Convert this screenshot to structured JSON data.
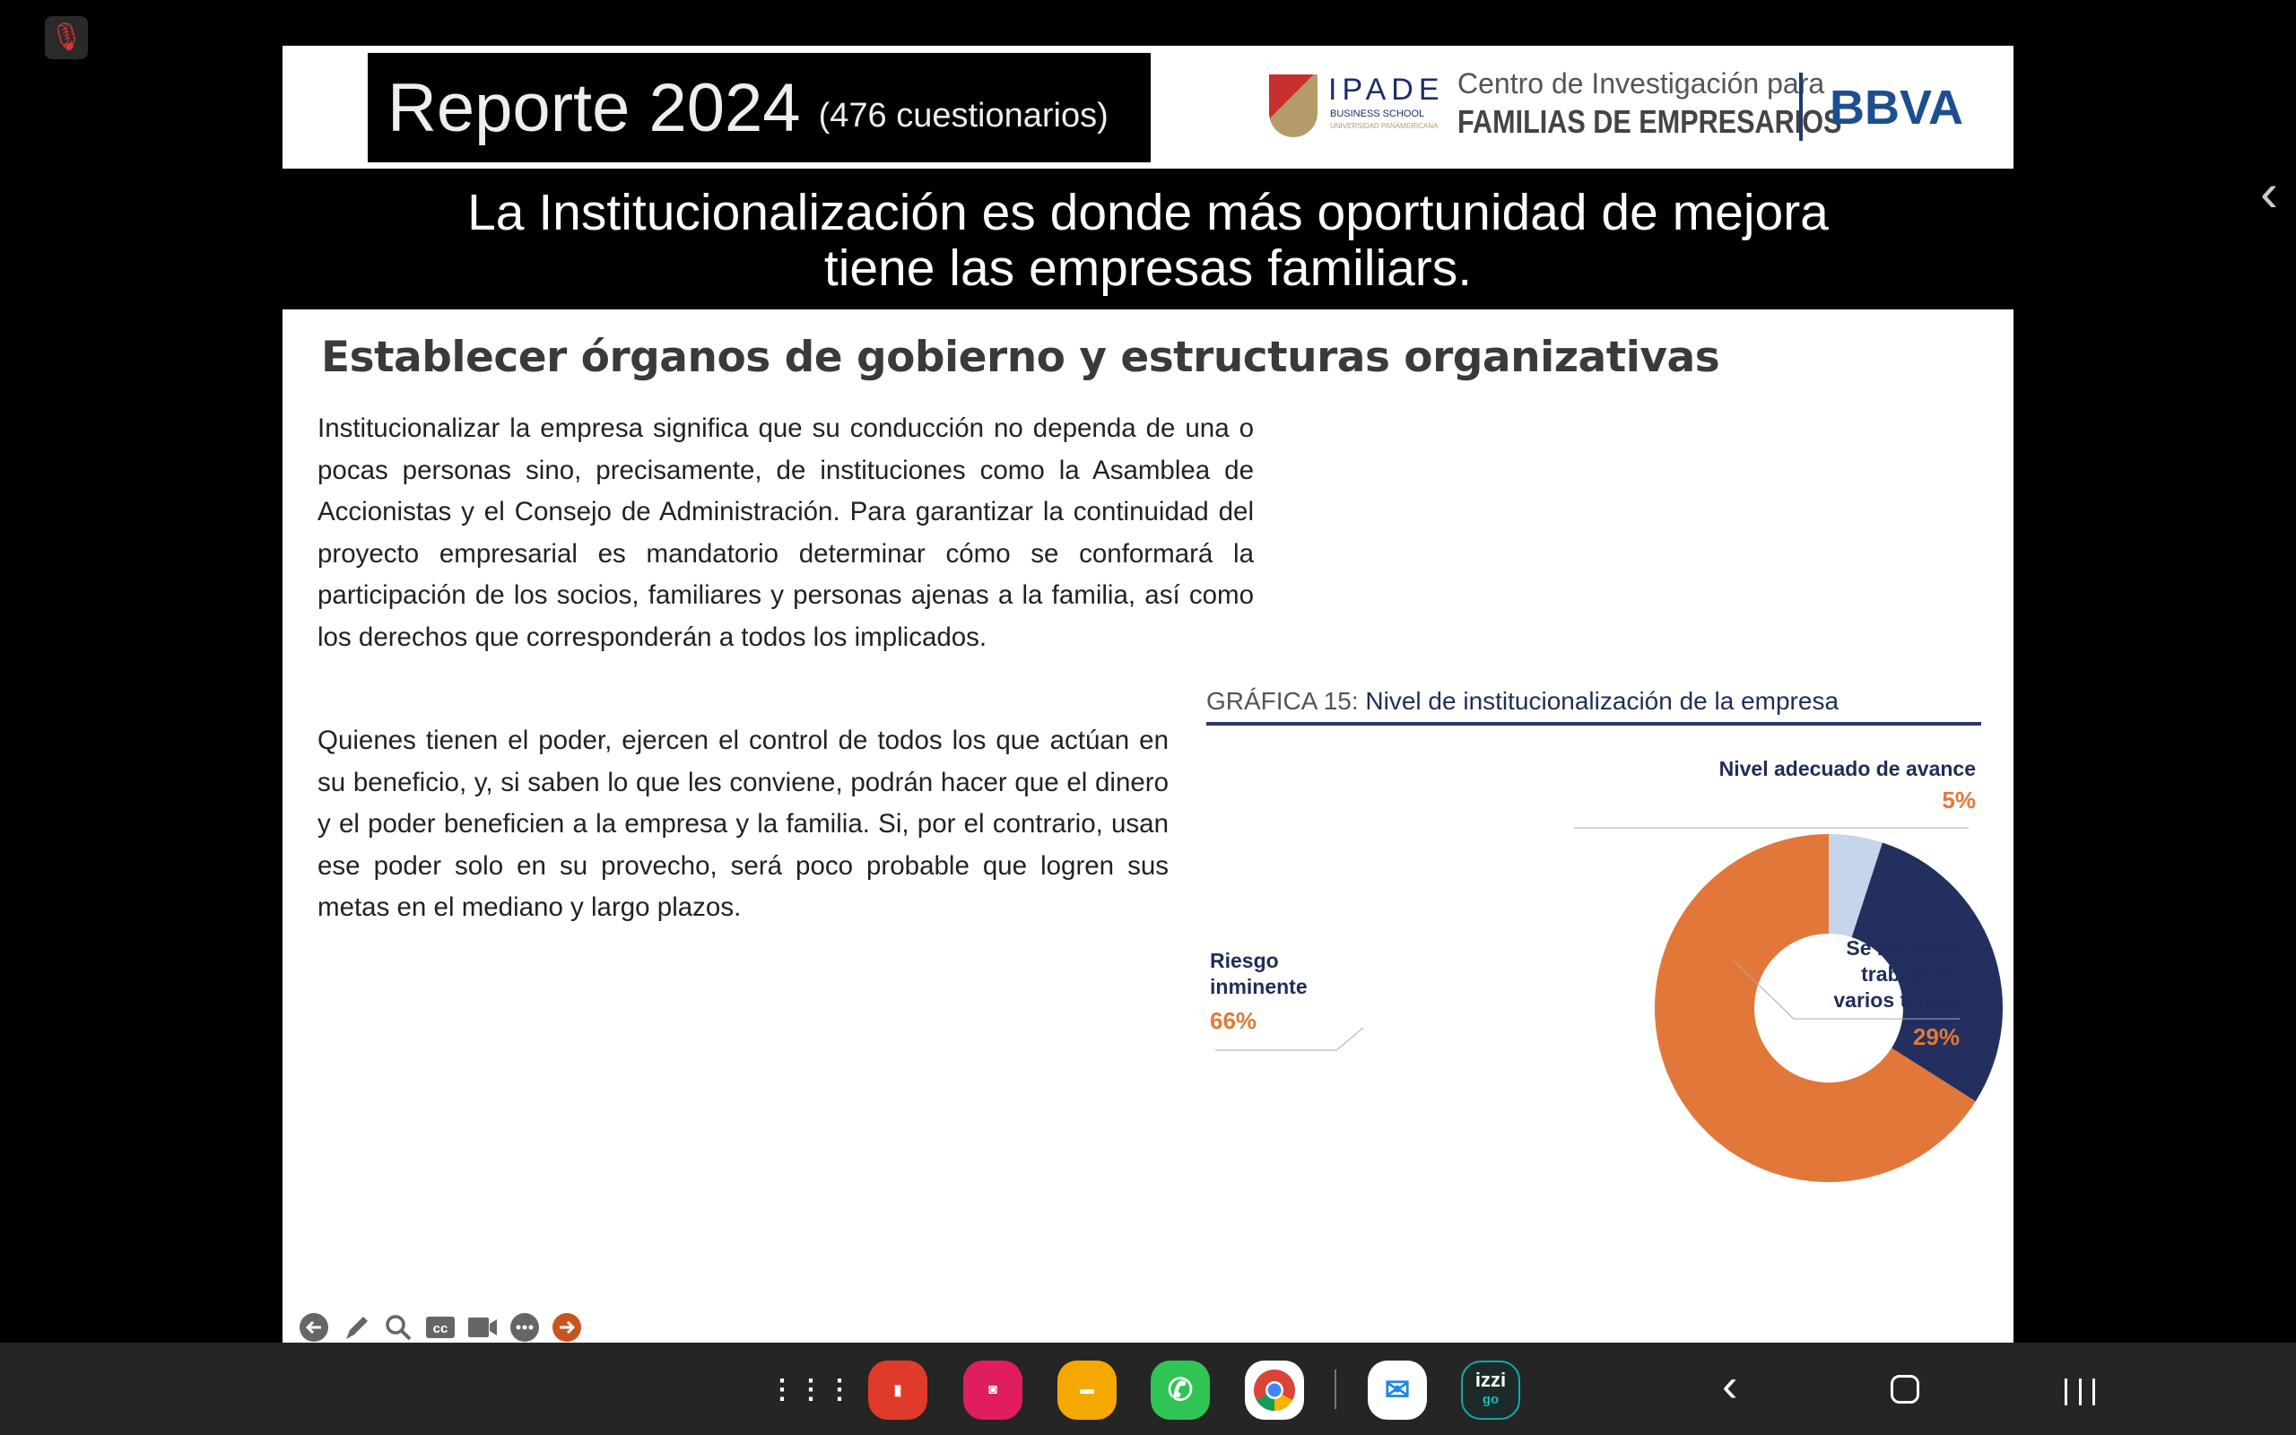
{
  "header": {
    "title": "Reporte 2024",
    "subtitle": "(476 cuestionarios)",
    "logos": {
      "ipade": "IPADE",
      "ipade_sub": "BUSINESS SCHOOL",
      "ipade_sub2": "UNIVERSIDAD PANAMERICANA",
      "centro_line1": "Centro de Investigación para",
      "centro_line2": "FAMILIAS DE EMPRESARIOS",
      "bbva": "BBVA"
    }
  },
  "banner": {
    "line1": "La Institucionalización es donde más oportunidad de mejora",
    "line2": "tiene las empresas familiars."
  },
  "content": {
    "heading": "Establecer órganos de gobierno y estructuras organizativas",
    "paragraph1": "Institucionalizar la empresa significa que su conducción no dependa de una o pocas personas sino, precisamente, de instituciones como la Asamblea de Accionistas y el Consejo de Administración. Para garantizar la continuidad del proyecto empresarial es mandatorio determinar cómo se conformará la participación de los socios, familiares y personas ajenas a la familia, así como los derechos que corresponderán a todos los implicados.",
    "paragraph2": "Quienes tienen el poder, ejercen el control de todos los que actúan en su beneficio, y, si saben lo que les conviene, podrán hacer que el dinero y el poder beneficien a la empresa y la familia. Si, por el contrario, usan ese poder solo en su provecho, será poco probable que logren sus metas en el mediano y largo plazos."
  },
  "chart_data": {
    "type": "pie",
    "title_prefix": "GRÁFICA 15:",
    "title": "Nivel de institucionalización de la empresa",
    "slices": [
      {
        "label": "Nivel adecuado de avance",
        "label_lines": [
          "Nivel adecuado de avance"
        ],
        "value": 5,
        "pct_label": "5%",
        "color": "#c5d5ea"
      },
      {
        "label": "Se necesita trabajo en varios temas",
        "label_lines": [
          "Se necesita",
          "trabajo en",
          "varios temas"
        ],
        "value": 29,
        "pct_label": "29%",
        "color": "#232f5e"
      },
      {
        "label": "Riesgo inminente",
        "label_lines": [
          "Riesgo",
          "inminente"
        ],
        "value": 66,
        "pct_label": "66%",
        "color": "#e2773a"
      }
    ]
  },
  "toolbar": [
    "back",
    "pen",
    "zoom",
    "captions",
    "video",
    "more",
    "next"
  ],
  "taskbar": {
    "apps": [
      "Apps",
      "Notes",
      "Camera",
      "Files",
      "WhatsApp",
      "Chrome",
      "Mail",
      "izzi go"
    ],
    "izzi_top": "izzi",
    "izzi_bottom": "go"
  }
}
